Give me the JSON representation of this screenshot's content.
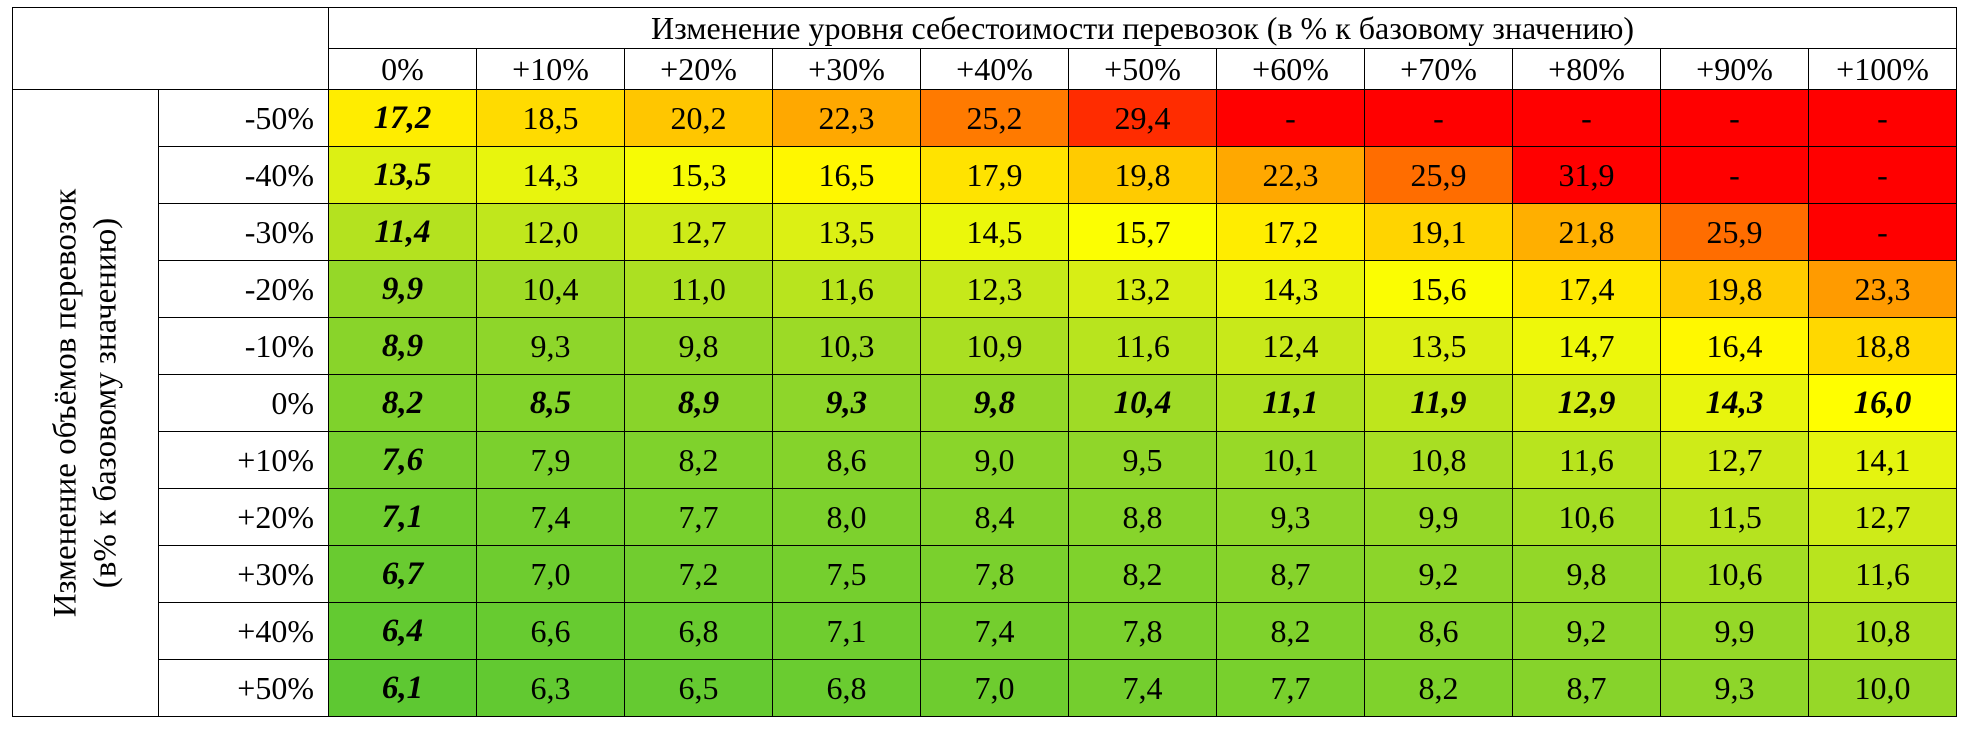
{
  "chart_data": {
    "type": "heatmap",
    "title": "Изменение уровня себестоимости перевозок (в % к базовому значению)",
    "xlabel": "Изменение уровня себестоимости перевозок (в % к базовому значению)",
    "ylabel_lines": [
      "Изменение объёмов перевозок",
      "(в% к базовому значению)"
    ],
    "x_categories": [
      "0%",
      "+10%",
      "+20%",
      "+30%",
      "+40%",
      "+50%",
      "+60%",
      "+70%",
      "+80%",
      "+90%",
      "+100%"
    ],
    "y_categories": [
      "-50%",
      "-40%",
      "-30%",
      "-20%",
      "-10%",
      "0%",
      "+10%",
      "+20%",
      "+30%",
      "+40%",
      "+50%"
    ],
    "values": [
      [
        "17,2",
        "18,5",
        "20,2",
        "22,3",
        "25,2",
        "29,4",
        "-",
        "-",
        "-",
        "-",
        "-"
      ],
      [
        "13,5",
        "14,3",
        "15,3",
        "16,5",
        "17,9",
        "19,8",
        "22,3",
        "25,9",
        "31,9",
        "-",
        "-"
      ],
      [
        "11,4",
        "12,0",
        "12,7",
        "13,5",
        "14,5",
        "15,7",
        "17,2",
        "19,1",
        "21,8",
        "25,9",
        "-"
      ],
      [
        "9,9",
        "10,4",
        "11,0",
        "11,6",
        "12,3",
        "13,2",
        "14,3",
        "15,6",
        "17,4",
        "19,8",
        "23,3"
      ],
      [
        "8,9",
        "9,3",
        "9,8",
        "10,3",
        "10,9",
        "11,6",
        "12,4",
        "13,5",
        "14,7",
        "16,4",
        "18,8"
      ],
      [
        "8,2",
        "8,5",
        "8,9",
        "9,3",
        "9,8",
        "10,4",
        "11,1",
        "11,9",
        "12,9",
        "14,3",
        "16,0"
      ],
      [
        "7,6",
        "7,9",
        "8,2",
        "8,6",
        "9,0",
        "9,5",
        "10,1",
        "10,8",
        "11,6",
        "12,7",
        "14,1"
      ],
      [
        "7,1",
        "7,4",
        "7,7",
        "8,0",
        "8,4",
        "8,8",
        "9,3",
        "9,9",
        "10,6",
        "11,5",
        "12,7"
      ],
      [
        "6,7",
        "7,0",
        "7,2",
        "7,5",
        "7,8",
        "8,2",
        "8,7",
        "9,2",
        "9,8",
        "10,6",
        "11,6"
      ],
      [
        "6,4",
        "6,6",
        "6,8",
        "7,1",
        "7,4",
        "7,8",
        "8,2",
        "8,6",
        "9,2",
        "9,9",
        "10,8"
      ],
      [
        "6,1",
        "6,3",
        "6,5",
        "6,8",
        "7,0",
        "7,4",
        "7,7",
        "8,2",
        "8,7",
        "9,3",
        "10,0"
      ]
    ],
    "emphasis": {
      "bold_italic_column": "0%",
      "bold_italic_row": "0%"
    },
    "color_scale": {
      "low": "#5ec832",
      "mid": "#ffff00",
      "high": "#ff0000",
      "missing": "#ff0000"
    }
  }
}
